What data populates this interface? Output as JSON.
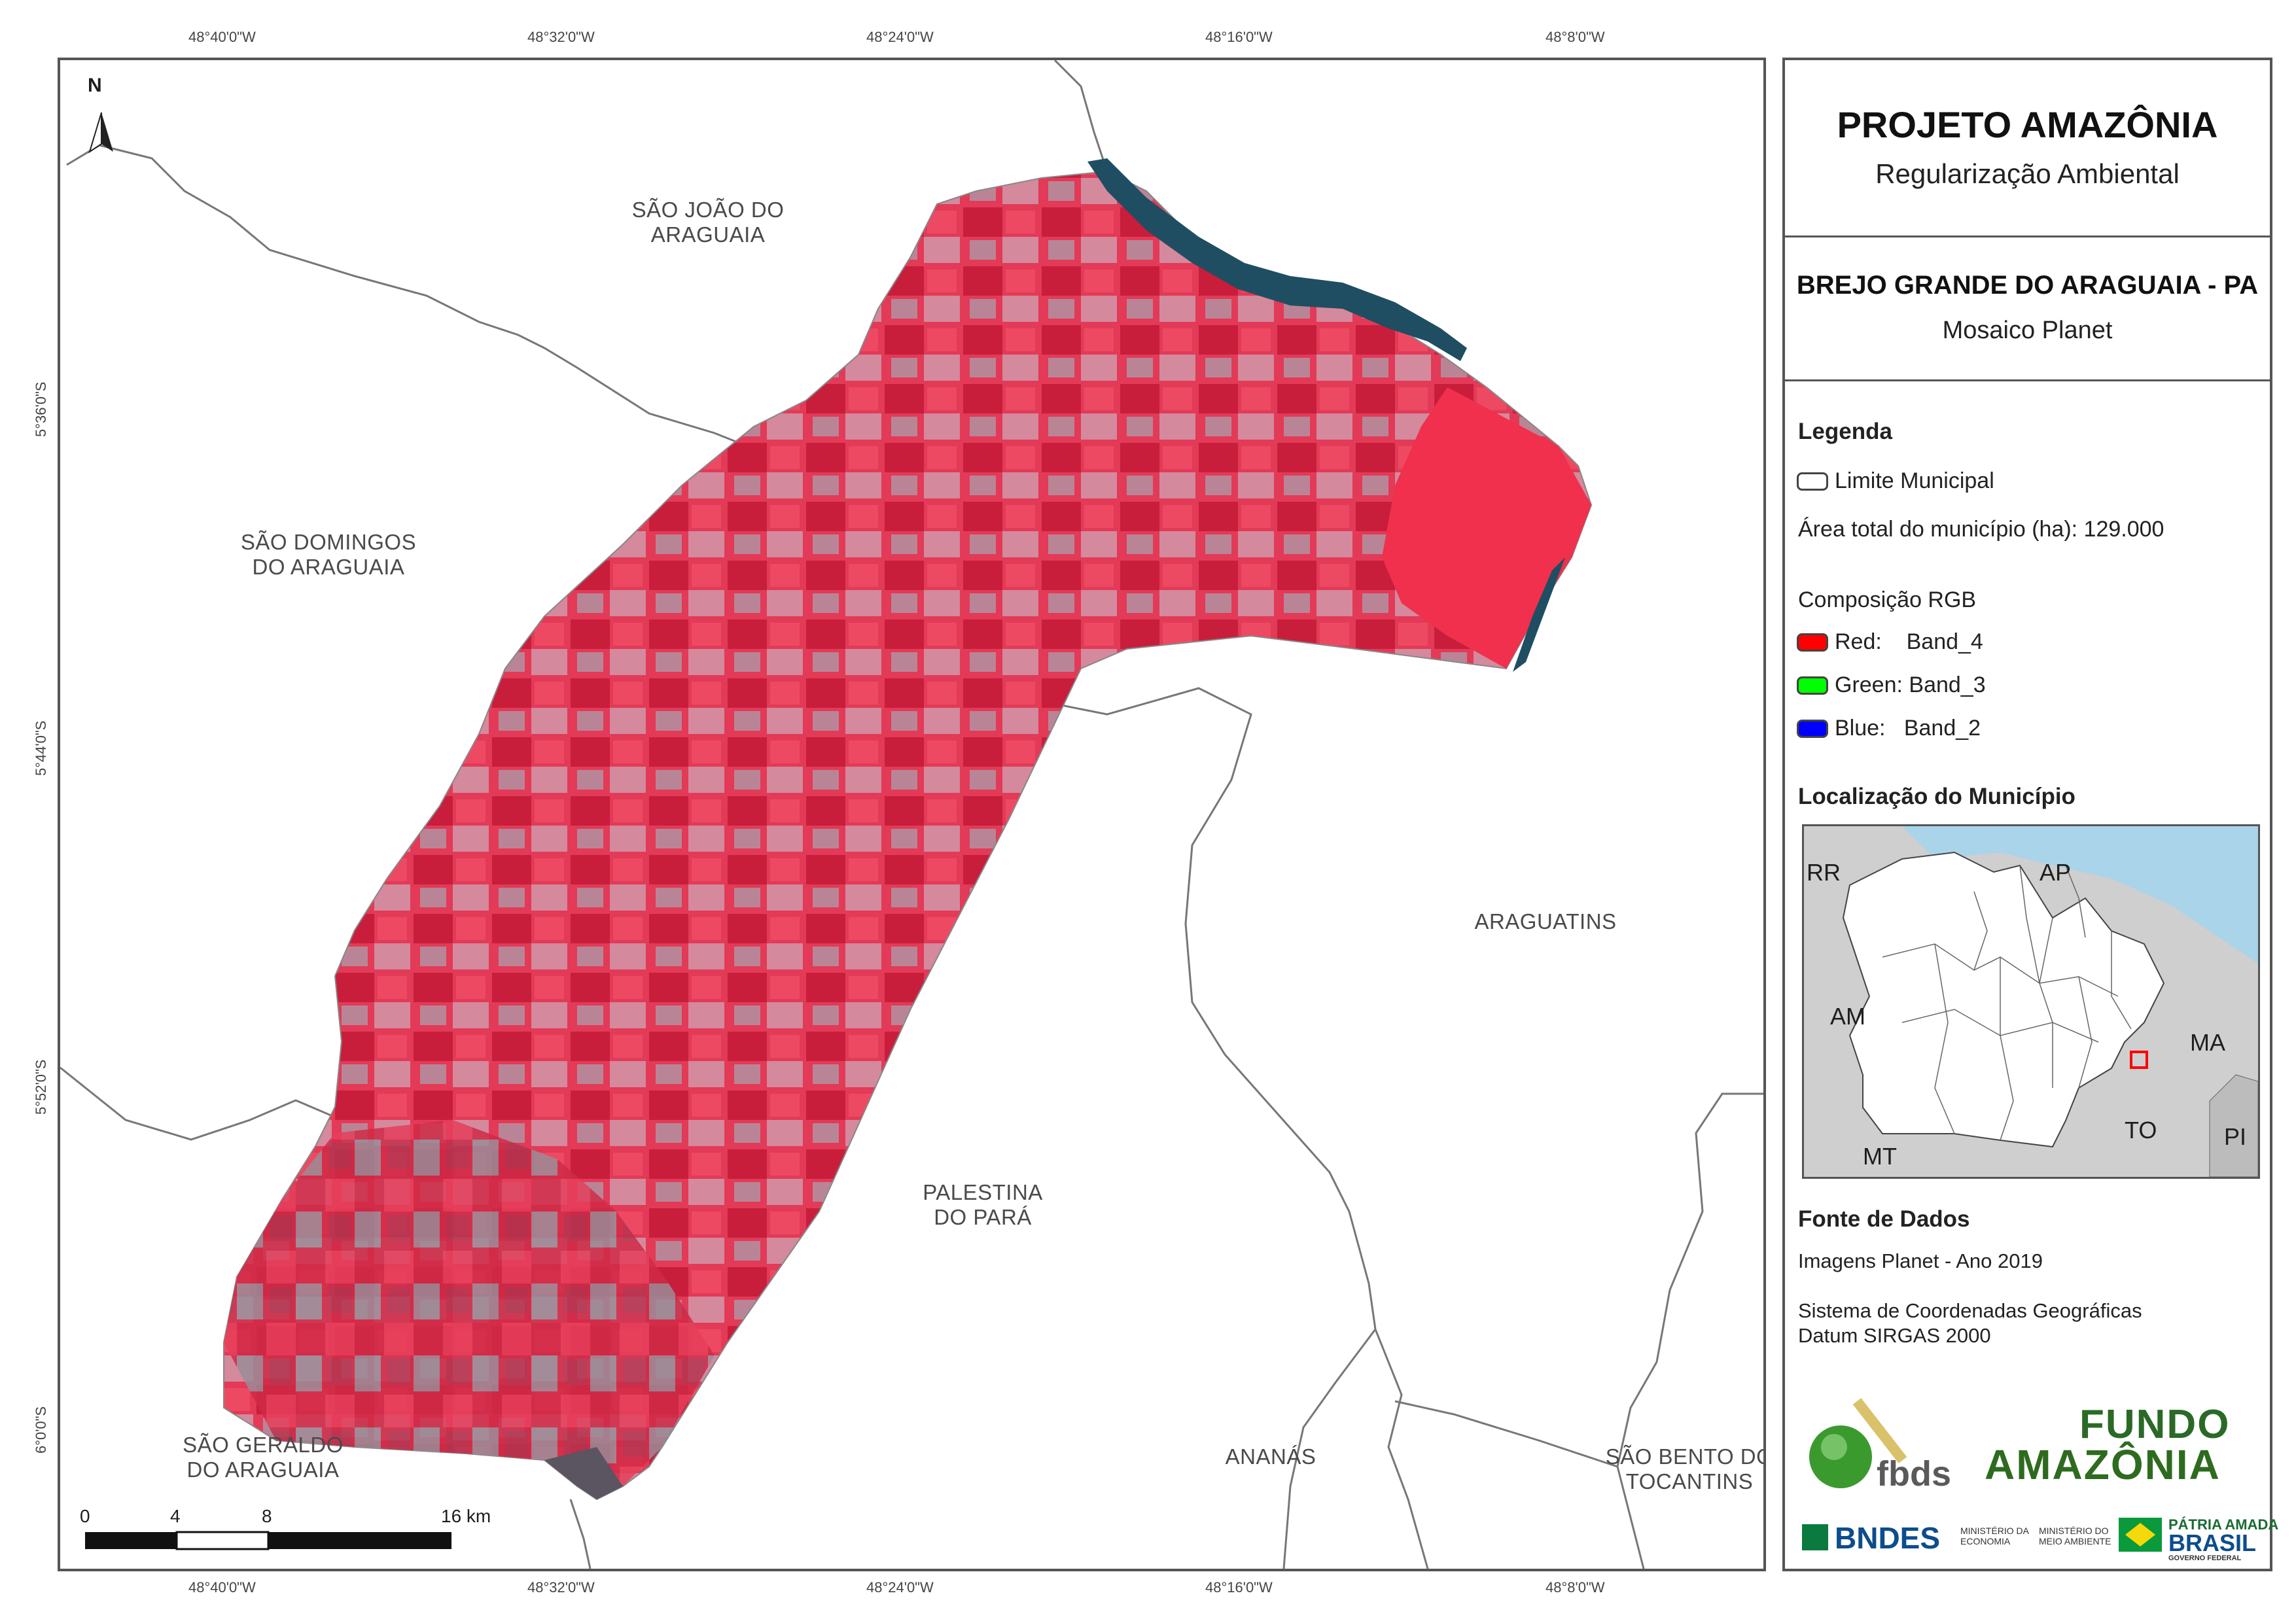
{
  "coords": {
    "top": [
      "48°40'0\"W",
      "48°32'0\"W",
      "48°24'0\"W",
      "48°16'0\"W",
      "48°8'0\"W"
    ],
    "bottom": [
      "48°40'0\"W",
      "48°32'0\"W",
      "48°24'0\"W",
      "48°16'0\"W",
      "48°8'0\"W"
    ],
    "left": [
      "5°36'0\"S",
      "5°44'0\"S",
      "5°52'0\"S",
      "6°0'0\"S"
    ]
  },
  "map": {
    "north_label": "N",
    "places": {
      "sao_joao": "SÃO JOÃO DO\nARAGUAIA",
      "sao_domingos": "SÃO DOMINGOS\nDO ARAGUAIA",
      "araguatins": "ARAGUATINS",
      "palestina": "PALESTINA\nDO PARÁ",
      "sao_geraldo": "SÃO GERALDO\nDO ARAGUAIA",
      "ananas": "ANANÁS",
      "sao_bento": "SÃO BENTO DO\nTOCANTINS"
    },
    "scale": {
      "labels": [
        "0",
        "4",
        "8",
        "16 km"
      ]
    }
  },
  "panel": {
    "title": "PROJETO AMAZÔNIA",
    "subtitle": "Regularização Ambiental",
    "municipality": "BREJO GRANDE DO ARAGUAIA - PA",
    "mosaic": "Mosaico Planet",
    "legend": {
      "heading": "Legenda",
      "limit": "Limite Municipal",
      "area": "Área total do município (ha): 129.000",
      "rgb_heading": "Composição RGB",
      "bands": [
        {
          "label": "Red:    Band_4",
          "color": "#ff0000"
        },
        {
          "label": "Green: Band_3",
          "color": "#00ff00"
        },
        {
          "label": "Blue:   Band_2",
          "color": "#0000ff"
        }
      ]
    },
    "location": {
      "heading": "Localização do Município",
      "labels": [
        "RR",
        "AP",
        "AM",
        "MA",
        "TO",
        "MT",
        "PI"
      ]
    },
    "sources": {
      "heading": "Fonte de Dados",
      "images": "Imagens Planet - Ano 2019",
      "crs_line1": "Sistema de Coordenadas Geográficas",
      "crs_line2": "Datum SIRGAS 2000"
    },
    "logos": {
      "fbds": "fbds",
      "fundo1": "FUNDO",
      "fundo2": "AMAZÔNIA",
      "bndes": "BNDES",
      "min1": "MINISTÉRIO DA\nECONOMIA",
      "min2": "MINISTÉRIO DO\nMEIO AMBIENTE",
      "brasil1": "PÁTRIA AMADA",
      "brasil2": "BRASIL",
      "brasil3": "GOVERNO FEDERAL"
    }
  },
  "colors": {
    "vegetation": "#e8324f",
    "vegetation_dark": "#c41a36",
    "pasture": "#c98a9c",
    "river": "#1f4e63",
    "ocean": "#a9d4ea",
    "land": "#cfcfcf"
  }
}
